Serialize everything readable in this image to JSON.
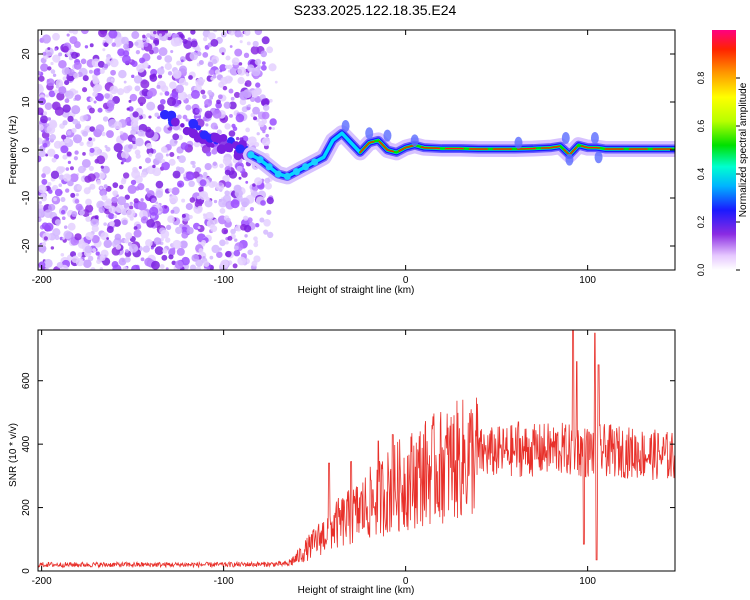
{
  "title": "S233.2025.122.18.35.E24",
  "chart_data": [
    {
      "type": "heatmap",
      "xlabel": "Height of straight line (km)",
      "ylabel": "Frequency (Hz)",
      "xlim": [
        -202,
        148
      ],
      "ylim": [
        -25,
        25
      ],
      "x_ticks": [
        "-200",
        "-100",
        "0",
        "100"
      ],
      "y_ticks": [
        "20",
        "10",
        "0",
        "-10",
        "-20"
      ],
      "colorbar": {
        "label": "Normalized spectral amplitude",
        "range": [
          0,
          1
        ],
        "ticks": [
          "0.0",
          "0.2",
          "0.4",
          "0.6",
          "0.8"
        ]
      },
      "reference_line_hz": 0,
      "ridge": {
        "x": [
          -85,
          -80,
          -75,
          -70,
          -65,
          -60,
          -55,
          -50,
          -45,
          -40,
          -35,
          -30,
          -25,
          -20,
          -15,
          -10,
          -5,
          0,
          5,
          10,
          20,
          30,
          40,
          50,
          60,
          70,
          80,
          85,
          90,
          95,
          100,
          105,
          110,
          120,
          130,
          140,
          148
        ],
        "y": [
          -1,
          -2,
          -3.5,
          -5,
          -5.5,
          -4.5,
          -3.5,
          -2.5,
          -1.5,
          2,
          3.5,
          1.5,
          -0.5,
          1.5,
          2,
          0,
          -0.5,
          0.5,
          1,
          0.5,
          0.3,
          0.3,
          0.2,
          0.2,
          0.2,
          0.3,
          0.5,
          0.8,
          -1,
          1,
          0.5,
          0.5,
          0.2,
          0.2,
          0.2,
          0.2,
          0.2
        ]
      }
    },
    {
      "type": "line",
      "xlabel": "Height of straight line (km)",
      "ylabel": "SNR (10 * v/v)",
      "xlim": [
        -202,
        148
      ],
      "ylim": [
        0,
        760
      ],
      "x_ticks": [
        "-200",
        "-100",
        "0",
        "100"
      ],
      "y_ticks": [
        "0",
        "200",
        "400",
        "600"
      ],
      "color": "#e8302a",
      "envelope": {
        "x": [
          -202,
          -100,
          -65,
          -60,
          -50,
          -40,
          -30,
          -20,
          -10,
          0,
          10,
          20,
          30,
          40,
          50,
          60,
          70,
          80,
          85,
          90,
          95,
          100,
          105,
          110,
          120,
          130,
          148
        ],
        "y": [
          20,
          20,
          22,
          40,
          90,
          140,
          170,
          210,
          250,
          280,
          310,
          330,
          350,
          370,
          375,
          380,
          380,
          385,
          385,
          380,
          380,
          375,
          380,
          380,
          375,
          370,
          360
        ]
      },
      "spikes": [
        {
          "x": -42,
          "y": 340
        },
        {
          "x": -30,
          "y": 345
        },
        {
          "x": -15,
          "y": 410
        },
        {
          "x": -7,
          "y": 430
        },
        {
          "x": 62,
          "y": 470
        },
        {
          "x": 92,
          "y": 760
        },
        {
          "x": 94,
          "y": 660
        },
        {
          "x": 98,
          "y": 85
        },
        {
          "x": 104,
          "y": 750
        },
        {
          "x": 106,
          "y": 650
        },
        {
          "x": 105,
          "y": 35
        }
      ]
    }
  ]
}
